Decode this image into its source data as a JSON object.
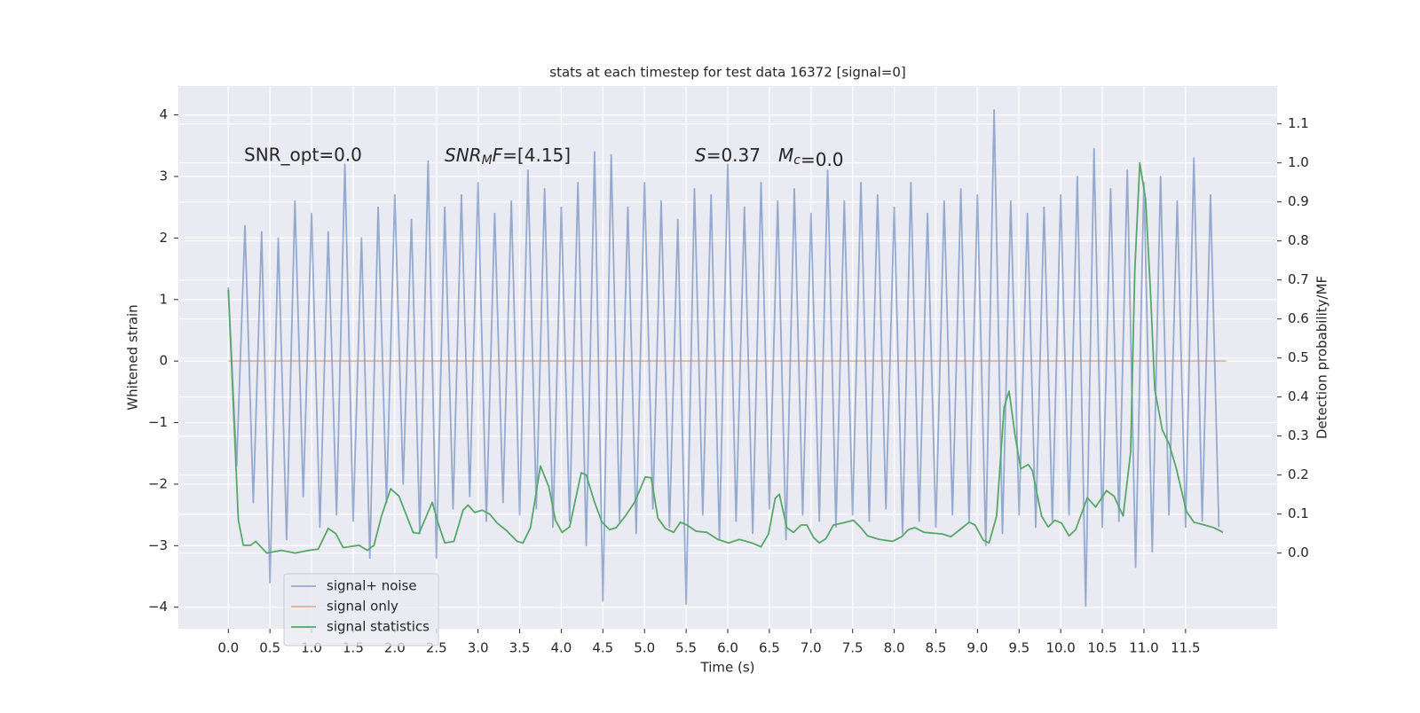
{
  "chart_data": {
    "type": "line",
    "title": "stats at each timestep for test data 16372 [signal=0]",
    "xlabel": "Time (s)",
    "ylabel": "Whitened strain",
    "y2label": "Detection probability/MF",
    "xlim": [
      -0.6,
      12.6
    ],
    "ylim": [
      -4.35,
      4.47
    ],
    "y2lim": [
      -0.194,
      1.197
    ],
    "xticks": [
      {
        "value": 0,
        "label": "0.0"
      },
      {
        "value": 0.5,
        "label": "0.5"
      },
      {
        "value": 1,
        "label": "1.0"
      },
      {
        "value": 1.5,
        "label": "1.5"
      },
      {
        "value": 2,
        "label": "2.0"
      },
      {
        "value": 2.5,
        "label": "2.5"
      },
      {
        "value": 3,
        "label": "3.0"
      },
      {
        "value": 3.5,
        "label": "3.5"
      },
      {
        "value": 4,
        "label": "4.0"
      },
      {
        "value": 4.5,
        "label": "4.5"
      },
      {
        "value": 5,
        "label": "5.0"
      },
      {
        "value": 5.5,
        "label": "5.5"
      },
      {
        "value": 6,
        "label": "6.0"
      },
      {
        "value": 6.5,
        "label": "6.5"
      },
      {
        "value": 7,
        "label": "7.0"
      },
      {
        "value": 7.5,
        "label": "7.5"
      },
      {
        "value": 8,
        "label": "8.0"
      },
      {
        "value": 8.5,
        "label": "8.5"
      },
      {
        "value": 9,
        "label": "9.0"
      },
      {
        "value": 9.5,
        "label": "9.5"
      },
      {
        "value": 10,
        "label": "10.0"
      },
      {
        "value": 10.5,
        "label": "10.5"
      },
      {
        "value": 11,
        "label": "11.0"
      },
      {
        "value": 11.5,
        "label": "11.5"
      }
    ],
    "yticks": [
      {
        "value": -4,
        "label": "−4"
      },
      {
        "value": -3,
        "label": "−3"
      },
      {
        "value": -2,
        "label": "−2"
      },
      {
        "value": -1,
        "label": "−1"
      },
      0,
      1,
      2,
      3,
      4
    ],
    "y2ticks": [
      {
        "value": 0,
        "label": "0.0"
      },
      {
        "value": 0.1,
        "label": "0.1"
      },
      {
        "value": 0.2,
        "label": "0.2"
      },
      {
        "value": 0.3,
        "label": "0.3"
      },
      {
        "value": 0.4,
        "label": "0.4"
      },
      {
        "value": 0.5,
        "label": "0.5"
      },
      {
        "value": 0.6,
        "label": "0.6"
      },
      {
        "value": 0.7,
        "label": "0.7"
      },
      {
        "value": 0.8,
        "label": "0.8"
      },
      {
        "value": 0.9,
        "label": "0.9"
      },
      {
        "value": 1,
        "label": "1.0"
      },
      {
        "value": 1.1,
        "label": "1.1"
      }
    ],
    "grid": true,
    "legend_position": "lower left",
    "annotations": [
      {
        "text": "SNR_opt=0.0",
        "math": false
      },
      {
        "text": "SNR_MF=[4.15]",
        "math": true
      },
      {
        "text": "S=0.37",
        "math": true
      },
      {
        "text": "M_c=0.0",
        "math": true
      }
    ],
    "series": [
      {
        "name": "signal+ noise",
        "color": "#4c72b0",
        "opacity": 0.55,
        "x": [
          0,
          0.1,
          0.2,
          0.3,
          0.4,
          0.5,
          0.6,
          0.7,
          0.8,
          0.9,
          1,
          1.1,
          1.2,
          1.3,
          1.4,
          1.5,
          1.6,
          1.7,
          1.8,
          1.9,
          2,
          2.1,
          2.2,
          2.3,
          2.4,
          2.5,
          2.6,
          2.7,
          2.8,
          2.9,
          3,
          3.1,
          3.2,
          3.3,
          3.4,
          3.5,
          3.6,
          3.7,
          3.8,
          3.9,
          4,
          4.1,
          4.2,
          4.3,
          4.4,
          4.5,
          4.6,
          4.7,
          4.8,
          4.9,
          5,
          5.1,
          5.2,
          5.3,
          5.4,
          5.5,
          5.6,
          5.7,
          5.8,
          5.9,
          6,
          6.1,
          6.2,
          6.3,
          6.4,
          6.5,
          6.6,
          6.7,
          6.8,
          6.9,
          7,
          7.1,
          7.2,
          7.3,
          7.4,
          7.5,
          7.6,
          7.7,
          7.8,
          7.9,
          8,
          8.1,
          8.2,
          8.3,
          8.4,
          8.5,
          8.6,
          8.7,
          8.8,
          8.9,
          9,
          9.1,
          9.2,
          9.3,
          9.4,
          9.5,
          9.6,
          9.7,
          9.8,
          9.9,
          10,
          10.1,
          10.2,
          10.3,
          10.4,
          10.5,
          10.6,
          10.7,
          10.8,
          10.9,
          11,
          11.1,
          11.2,
          11.3,
          11.4,
          11.5,
          11.6,
          11.7,
          11.8,
          11.9
        ],
        "values": [
          1.2,
          -1.7,
          2.2,
          -2.3,
          2.1,
          -3.6,
          2.0,
          -2.9,
          2.6,
          -2.2,
          2.4,
          -2.7,
          2.1,
          -2.5,
          3.2,
          -2.6,
          2.0,
          -3.2,
          2.5,
          -2.3,
          2.7,
          -2.0,
          2.3,
          -2.8,
          3.25,
          -3.2,
          2.5,
          -2.4,
          2.7,
          -2.2,
          2.9,
          -2.6,
          2.4,
          -2.3,
          2.6,
          -2.5,
          3.1,
          -2.4,
          2.8,
          -2.7,
          2.5,
          -2.6,
          2.9,
          -3.0,
          3.4,
          -3.9,
          3.35,
          -2.6,
          2.5,
          -2.8,
          2.9,
          -2.4,
          2.6,
          -2.7,
          2.3,
          -3.95,
          2.8,
          -2.5,
          2.7,
          -2.9,
          3.2,
          -2.6,
          2.5,
          -2.8,
          2.9,
          -2.4,
          2.6,
          -2.9,
          2.8,
          -2.5,
          2.4,
          -2.6,
          3.1,
          -2.7,
          2.6,
          -2.5,
          2.9,
          -2.6,
          2.7,
          -2.4,
          2.5,
          -2.8,
          2.9,
          -2.6,
          2.4,
          -2.7,
          2.6,
          -2.5,
          2.8,
          -2.6,
          2.7,
          -3.0,
          4.08,
          -2.8,
          2.6,
          -2.5,
          2.4,
          -2.7,
          2.5,
          -2.6,
          2.7,
          -2.5,
          3.0,
          -3.98,
          3.45,
          -2.7,
          2.8,
          -2.6,
          3.1,
          -3.35,
          2.9,
          -3.1,
          3.0,
          -2.5,
          2.6,
          -2.7,
          3.3,
          -2.6,
          2.7,
          -2.7
        ]
      },
      {
        "name": "signal only",
        "color": "#dd8452",
        "opacity": 0.6,
        "x": [
          0,
          11.99
        ],
        "values": [
          0,
          0
        ]
      },
      {
        "name": "signal statistics",
        "color": "#55a868",
        "opacity": 1,
        "axis": "y2",
        "x": [
          0,
          0.12,
          0.18,
          0.27,
          0.33,
          0.46,
          0.64,
          0.8,
          0.97,
          1.08,
          1.2,
          1.29,
          1.38,
          1.57,
          1.67,
          1.75,
          1.84,
          1.95,
          2.05,
          2.22,
          2.29,
          2.45,
          2.52,
          2.6,
          2.71,
          2.82,
          2.88,
          2.96,
          3.05,
          3.14,
          3.23,
          3.34,
          3.47,
          3.54,
          3.63,
          3.75,
          3.85,
          3.93,
          4.01,
          4.1,
          4.24,
          4.3,
          4.4,
          4.49,
          4.58,
          4.66,
          4.77,
          4.88,
          5.01,
          5.08,
          5.16,
          5.25,
          5.35,
          5.43,
          5.51,
          5.62,
          5.75,
          5.88,
          6.01,
          6.14,
          6.29,
          6.4,
          6.49,
          6.57,
          6.62,
          6.71,
          6.79,
          6.88,
          6.95,
          7.03,
          7.1,
          7.18,
          7.27,
          7.38,
          7.51,
          7.6,
          7.68,
          7.82,
          7.98,
          8.09,
          8.17,
          8.25,
          8.36,
          8.58,
          8.68,
          8.79,
          8.9,
          8.97,
          9.07,
          9.14,
          9.23,
          9.32,
          9.38,
          9.45,
          9.52,
          9.61,
          9.66,
          9.77,
          9.85,
          9.93,
          10.01,
          10.1,
          10.18,
          10.32,
          10.42,
          10.55,
          10.64,
          10.75,
          10.84,
          10.89,
          10.95,
          11.02,
          11.08,
          11.13,
          11.22,
          11.3,
          11.39,
          11.51,
          11.6,
          11.73,
          11.84,
          11.95
        ],
        "values": [
          0.675,
          0.085,
          0.02,
          0.02,
          0.03,
          0.0,
          0.007,
          0.0,
          0.007,
          0.01,
          0.063,
          0.05,
          0.014,
          0.02,
          0.007,
          0.02,
          0.095,
          0.165,
          0.146,
          0.053,
          0.05,
          0.13,
          0.077,
          0.026,
          0.03,
          0.11,
          0.123,
          0.104,
          0.11,
          0.1,
          0.077,
          0.058,
          0.03,
          0.026,
          0.065,
          0.223,
          0.17,
          0.084,
          0.053,
          0.067,
          0.206,
          0.2,
          0.13,
          0.079,
          0.06,
          0.065,
          0.095,
          0.13,
          0.195,
          0.193,
          0.09,
          0.063,
          0.053,
          0.079,
          0.072,
          0.056,
          0.053,
          0.035,
          0.026,
          0.035,
          0.026,
          0.016,
          0.049,
          0.14,
          0.151,
          0.065,
          0.053,
          0.072,
          0.072,
          0.04,
          0.026,
          0.037,
          0.072,
          0.077,
          0.084,
          0.065,
          0.044,
          0.035,
          0.03,
          0.042,
          0.06,
          0.065,
          0.053,
          0.049,
          0.042,
          0.06,
          0.079,
          0.072,
          0.033,
          0.026,
          0.095,
          0.374,
          0.415,
          0.304,
          0.216,
          0.227,
          0.211,
          0.095,
          0.067,
          0.084,
          0.077,
          0.044,
          0.06,
          0.142,
          0.118,
          0.16,
          0.146,
          0.095,
          0.258,
          0.722,
          1.0,
          0.907,
          0.664,
          0.42,
          0.316,
          0.281,
          0.216,
          0.107,
          0.079,
          0.072,
          0.065,
          0.053
        ]
      }
    ]
  }
}
